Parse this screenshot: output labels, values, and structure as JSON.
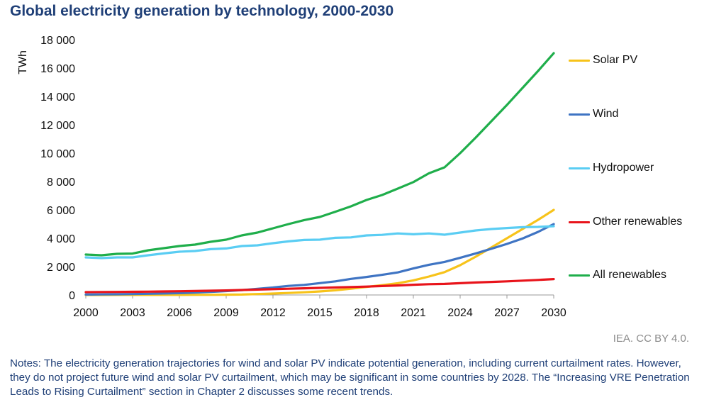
{
  "title": "Global electricity generation by technology, 2000-2030",
  "credit": "IEA. CC BY 4.0.",
  "notes": "Notes: The electricity generation trajectories for wind and solar PV indicate potential generation, including current curtailment rates. However, they do not project future wind and solar PV curtailment, which may be significant in some countries by 2028. The “Increasing VRE Penetration Leads to Rising Curtailment” section in Chapter 2 discusses some recent trends.",
  "chart_data": {
    "type": "line",
    "title": "Global electricity generation by technology, 2000-2030",
    "xlabel": "",
    "ylabel": "TWh",
    "xlim": [
      2000,
      2030
    ],
    "ylim": [
      0,
      18000
    ],
    "x_ticks": [
      2000,
      2003,
      2006,
      2009,
      2012,
      2015,
      2018,
      2021,
      2024,
      2027,
      2030
    ],
    "x_tick_labels": [
      "2000",
      "2003",
      "2006",
      "2009",
      "2012",
      "2015",
      "2018",
      "2021",
      "2024",
      "2027",
      "2030"
    ],
    "y_ticks": [
      0,
      2000,
      4000,
      6000,
      8000,
      10000,
      12000,
      14000,
      16000,
      18000
    ],
    "y_tick_labels": [
      "0",
      "2 000",
      "4 000",
      "6 000",
      "8 000",
      "10 000",
      "12 000",
      "14 000",
      "16 000",
      "18 000"
    ],
    "grid": false,
    "legend_position": "right",
    "x": [
      2000,
      2001,
      2002,
      2003,
      2004,
      2005,
      2006,
      2007,
      2008,
      2009,
      2010,
      2011,
      2012,
      2013,
      2014,
      2015,
      2016,
      2017,
      2018,
      2019,
      2020,
      2021,
      2022,
      2023,
      2024,
      2025,
      2026,
      2027,
      2028,
      2029,
      2030
    ],
    "series": [
      {
        "name": "Solar PV",
        "color": "#f7c31a",
        "values": [
          1,
          2,
          3,
          4,
          5,
          6,
          7,
          8,
          12,
          20,
          32,
          65,
          100,
          140,
          190,
          250,
          330,
          440,
          570,
          690,
          830,
          1030,
          1300,
          1610,
          2100,
          2700,
          3350,
          4000,
          4650,
          5300,
          6000
        ]
      },
      {
        "name": "Wind",
        "color": "#3f74c3",
        "values": [
          32,
          38,
          52,
          63,
          85,
          104,
          132,
          171,
          219,
          276,
          342,
          437,
          523,
          640,
          712,
          834,
          958,
          1135,
          1270,
          1420,
          1590,
          1870,
          2130,
          2330,
          2620,
          2930,
          3260,
          3600,
          3980,
          4450,
          5000
        ]
      },
      {
        "name": "Hydropower",
        "color": "#5acdf3",
        "values": [
          2650,
          2600,
          2650,
          2650,
          2800,
          2930,
          3050,
          3100,
          3230,
          3280,
          3450,
          3500,
          3650,
          3780,
          3880,
          3900,
          4030,
          4060,
          4200,
          4240,
          4340,
          4280,
          4340,
          4250,
          4400,
          4550,
          4650,
          4720,
          4780,
          4800,
          4850
        ]
      },
      {
        "name": "Other renewables",
        "color": "#e8141b",
        "values": [
          200,
          210,
          215,
          225,
          235,
          250,
          265,
          280,
          300,
          320,
          350,
          380,
          410,
          440,
          470,
          500,
          530,
          560,
          590,
          630,
          670,
          720,
          760,
          780,
          830,
          880,
          920,
          960,
          1010,
          1060,
          1120
        ]
      },
      {
        "name": "All renewables",
        "color": "#1fae4b",
        "values": [
          2850,
          2800,
          2900,
          2920,
          3150,
          3300,
          3450,
          3550,
          3750,
          3900,
          4200,
          4400,
          4700,
          5000,
          5280,
          5500,
          5870,
          6250,
          6700,
          7050,
          7500,
          7960,
          8580,
          9000,
          10000,
          11100,
          12250,
          13400,
          14600,
          15800,
          17050
        ]
      }
    ]
  }
}
